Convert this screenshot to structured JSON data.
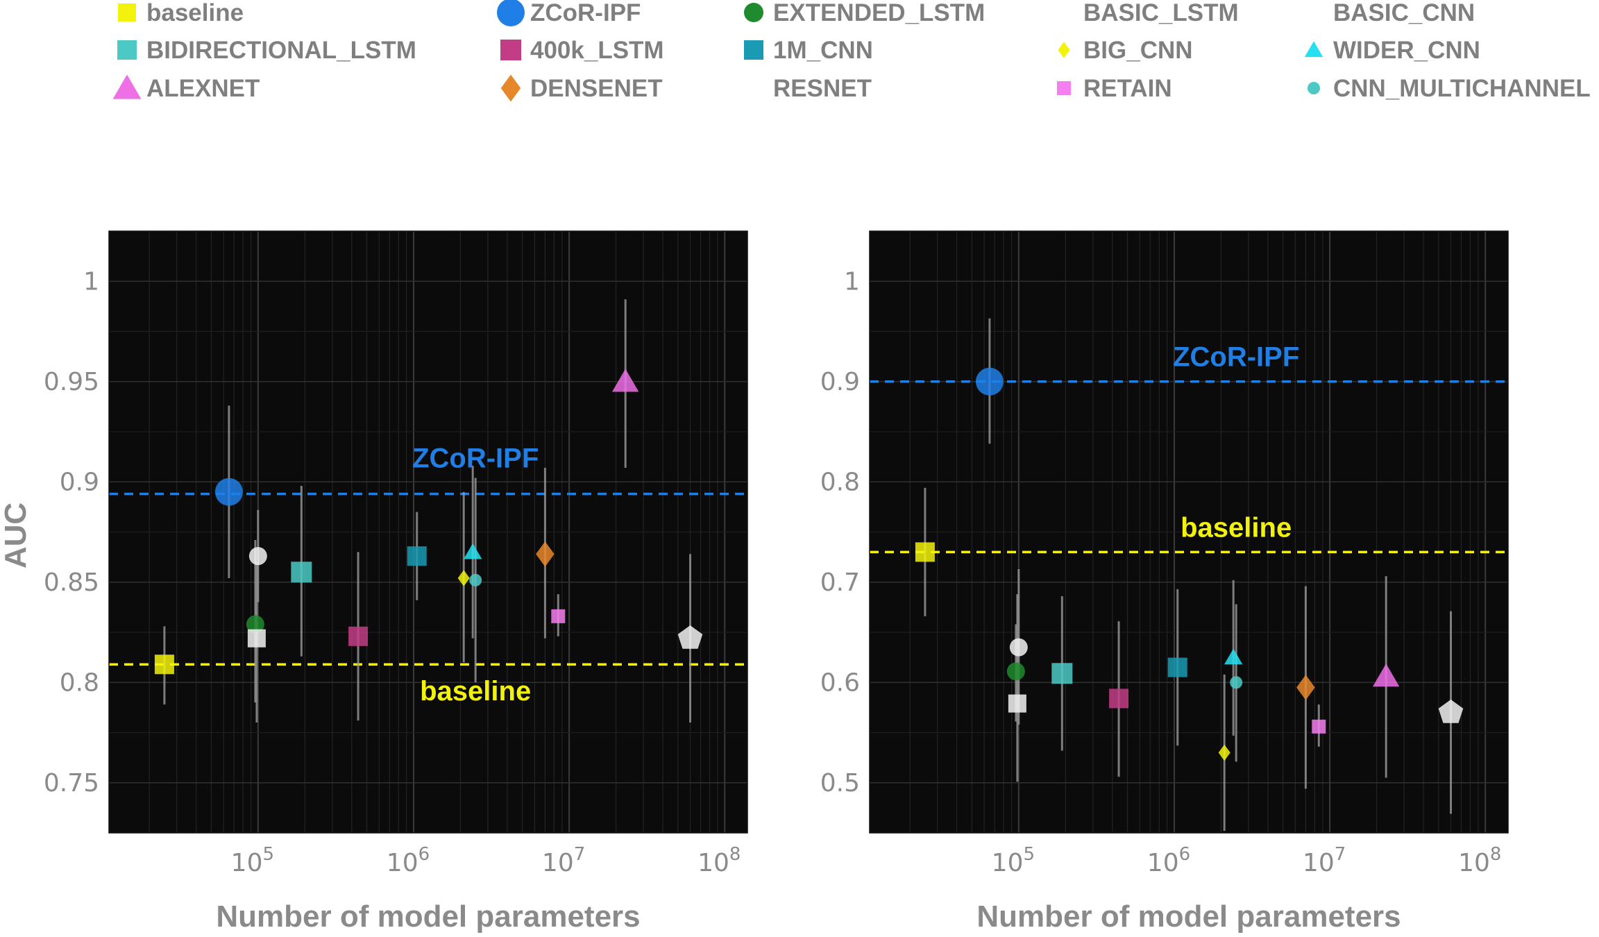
{
  "legend": [
    {
      "name": "baseline",
      "shape": "square",
      "color": "#f2f20c"
    },
    {
      "name": "ZCoR-IPF",
      "shape": "circle",
      "color": "#1f7fe6"
    },
    {
      "name": "EXTENDED_LSTM",
      "shape": "circle",
      "color": "#1f8a2e"
    },
    {
      "name": "BASIC_LSTM",
      "shape": "circle",
      "color": "#f2f2f2"
    },
    {
      "name": "BASIC_CNN",
      "shape": "square",
      "color": "#f2f2f2"
    },
    {
      "name": "BIDIRECTIONAL_LSTM",
      "shape": "square",
      "color": "#4cc9c4"
    },
    {
      "name": "400k_LSTM",
      "shape": "square",
      "color": "#c23d86"
    },
    {
      "name": "1M_CNN",
      "shape": "square",
      "color": "#1a9bb3"
    },
    {
      "name": "BIG_CNN",
      "shape": "diamond",
      "color": "#f2f20c"
    },
    {
      "name": "WIDER_CNN",
      "shape": "triangle",
      "color": "#24e0f0"
    },
    {
      "name": "ALEXNET",
      "shape": "triangle",
      "color": "#ee6fe6"
    },
    {
      "name": "DENSENET",
      "shape": "diamond",
      "color": "#e6882a"
    },
    {
      "name": "RESNET",
      "shape": "pentagon",
      "color": "#f2f2f2"
    },
    {
      "name": "RETAIN",
      "shape": "square",
      "color": "#f57ef0"
    },
    {
      "name": "CNN_MULTICHANNEL",
      "shape": "circle",
      "color": "#4cc9c4"
    }
  ],
  "chart_data": [
    {
      "type": "scatter",
      "xlabel": "Number of model parameters",
      "ylabel": "AUC",
      "x_scale": "log",
      "xlim": [
        11000,
        140000000
      ],
      "ylim": [
        0.725,
        1.025
      ],
      "yticks": [
        0.75,
        0.8,
        0.85,
        0.9,
        0.95,
        1
      ],
      "ytick_labels": [
        "0.75",
        "0.8",
        "0.85",
        "0.9",
        "0.95",
        "1"
      ],
      "xticks": [
        100000,
        1000000,
        10000000,
        100000000
      ],
      "xtick_labels": [
        {
          "base": "10",
          "exp": "5"
        },
        {
          "base": "10",
          "exp": "6"
        },
        {
          "base": "10",
          "exp": "7"
        },
        {
          "base": "10",
          "exp": "8"
        }
      ],
      "grid": true,
      "reference_lines": [
        {
          "name": "ZCoR-IPF",
          "y": 0.894,
          "color": "#1f7fe6",
          "label": "ZCoR-IPF",
          "label_x": 2500000,
          "label_y": 0.912
        },
        {
          "name": "baseline",
          "y": 0.809,
          "color": "#f2f20c",
          "label": "baseline",
          "label_x": 2500000,
          "label_y": 0.796
        }
      ],
      "points": [
        {
          "name": "baseline",
          "x": 25000,
          "y": 0.809,
          "lo": 0.789,
          "hi": 0.828
        },
        {
          "name": "ZCoR-IPF",
          "x": 65000,
          "y": 0.895,
          "lo": 0.852,
          "hi": 0.938
        },
        {
          "name": "EXTENDED_LSTM",
          "x": 96000,
          "y": 0.829,
          "lo": 0.79,
          "hi": 0.871
        },
        {
          "name": "BASIC_LSTM",
          "x": 100000,
          "y": 0.863,
          "lo": 0.84,
          "hi": 0.886
        },
        {
          "name": "BASIC_CNN",
          "x": 98000,
          "y": 0.822,
          "lo": 0.78,
          "hi": 0.86
        },
        {
          "name": "BIDIRECTIONAL_LSTM",
          "x": 190000,
          "y": 0.855,
          "lo": 0.813,
          "hi": 0.898
        },
        {
          "name": "400k_LSTM",
          "x": 440000,
          "y": 0.823,
          "lo": 0.781,
          "hi": 0.865
        },
        {
          "name": "1M_CNN",
          "x": 1050000,
          "y": 0.863,
          "lo": 0.841,
          "hi": 0.885
        },
        {
          "name": "BIG_CNN",
          "x": 2100000,
          "y": 0.852,
          "lo": 0.81,
          "hi": 0.895
        },
        {
          "name": "WIDER_CNN",
          "x": 2400000,
          "y": 0.865,
          "lo": 0.822,
          "hi": 0.908
        },
        {
          "name": "CNN_MULTICHANNEL",
          "x": 2500000,
          "y": 0.851,
          "lo": 0.8,
          "hi": 0.902
        },
        {
          "name": "DENSENET",
          "x": 7000000,
          "y": 0.864,
          "lo": 0.822,
          "hi": 0.907
        },
        {
          "name": "RETAIN",
          "x": 8500000,
          "y": 0.833,
          "lo": 0.823,
          "hi": 0.844
        },
        {
          "name": "ALEXNET",
          "x": 23000000,
          "y": 0.95,
          "lo": 0.907,
          "hi": 0.991
        },
        {
          "name": "RESNET",
          "x": 60000000,
          "y": 0.822,
          "lo": 0.78,
          "hi": 0.864
        }
      ]
    },
    {
      "type": "scatter",
      "xlabel": "Number of model parameters",
      "ylabel": "",
      "x_scale": "log",
      "xlim": [
        11000,
        140000000
      ],
      "ylim": [
        0.45,
        1.05
      ],
      "yticks": [
        0.5,
        0.6,
        0.7,
        0.8,
        0.9,
        1
      ],
      "ytick_labels": [
        "0.5",
        "0.6",
        "0.7",
        "0.8",
        "0.9",
        "1"
      ],
      "xticks": [
        100000,
        1000000,
        10000000,
        100000000
      ],
      "xtick_labels": [
        {
          "base": "10",
          "exp": "5"
        },
        {
          "base": "10",
          "exp": "6"
        },
        {
          "base": "10",
          "exp": "7"
        },
        {
          "base": "10",
          "exp": "8"
        }
      ],
      "grid": true,
      "reference_lines": [
        {
          "name": "ZCoR-IPF",
          "y": 0.9,
          "color": "#1f7fe6",
          "label": "ZCoR-IPF",
          "label_x": 2500000,
          "label_y": 0.925
        },
        {
          "name": "baseline",
          "y": 0.73,
          "color": "#f2f20c",
          "label": "baseline",
          "label_x": 2500000,
          "label_y": 0.755
        }
      ],
      "points": [
        {
          "name": "baseline",
          "x": 25000,
          "y": 0.73,
          "lo": 0.666,
          "hi": 0.794
        },
        {
          "name": "ZCoR-IPF",
          "x": 65000,
          "y": 0.9,
          "lo": 0.838,
          "hi": 0.963
        },
        {
          "name": "EXTENDED_LSTM",
          "x": 96000,
          "y": 0.611,
          "lo": 0.561,
          "hi": 0.658
        },
        {
          "name": "BASIC_LSTM",
          "x": 100000,
          "y": 0.635,
          "lo": 0.558,
          "hi": 0.713
        },
        {
          "name": "BASIC_CNN",
          "x": 98000,
          "y": 0.579,
          "lo": 0.501,
          "hi": 0.688
        },
        {
          "name": "BIDIRECTIONAL_LSTM",
          "x": 190000,
          "y": 0.609,
          "lo": 0.532,
          "hi": 0.686
        },
        {
          "name": "400k_LSTM",
          "x": 440000,
          "y": 0.584,
          "lo": 0.506,
          "hi": 0.661
        },
        {
          "name": "1M_CNN",
          "x": 1050000,
          "y": 0.615,
          "lo": 0.537,
          "hi": 0.693
        },
        {
          "name": "BIG_CNN",
          "x": 2100000,
          "y": 0.53,
          "lo": 0.452,
          "hi": 0.608
        },
        {
          "name": "WIDER_CNN",
          "x": 2400000,
          "y": 0.625,
          "lo": 0.547,
          "hi": 0.702
        },
        {
          "name": "CNN_MULTICHANNEL",
          "x": 2500000,
          "y": 0.6,
          "lo": 0.521,
          "hi": 0.678
        },
        {
          "name": "DENSENET",
          "x": 7000000,
          "y": 0.595,
          "lo": 0.494,
          "hi": 0.696
        },
        {
          "name": "RETAIN",
          "x": 8500000,
          "y": 0.556,
          "lo": 0.536,
          "hi": 0.578
        },
        {
          "name": "ALEXNET",
          "x": 23000000,
          "y": 0.606,
          "lo": 0.505,
          "hi": 0.706
        },
        {
          "name": "RESNET",
          "x": 60000000,
          "y": 0.57,
          "lo": 0.469,
          "hi": 0.671
        }
      ]
    }
  ]
}
